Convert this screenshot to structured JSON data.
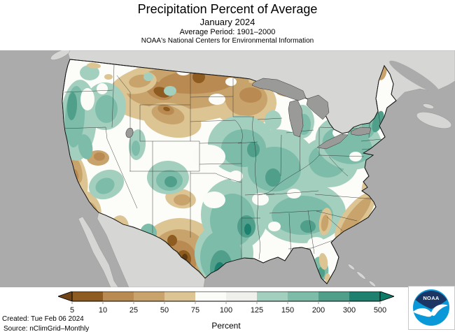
{
  "header": {
    "title": "Precipitation Percent of Average",
    "subtitle": "January 2024",
    "period": "Average Period: 1901–2000",
    "org": "NOAA's National Centers for Environmental Information"
  },
  "colorbar": {
    "unit_label": "Percent",
    "tick_labels": [
      "5",
      "10",
      "25",
      "50",
      "75",
      "100",
      "125",
      "150",
      "200",
      "300",
      "500"
    ]
  },
  "footer": {
    "created": "Created: Tue Feb 06 2024",
    "source": "Source: nClimGrid–Monthly"
  },
  "logo": {
    "label": "NOAA"
  },
  "colors": {
    "ocean": "#ABABAB",
    "neighbor_land": "#D6D6D4",
    "neighbor_stroke": "#8f8f8d",
    "lakes": "#9A9A98",
    "us_base": "#FCFCF8",
    "cb0": "#8E5C20",
    "cb1": "#B98B52",
    "cb2": "#C8A36B",
    "cb3": "#DCC493",
    "cb4": "#FBFBF7",
    "cb5": "#EFEFEC",
    "cb6": "#A3CFBF",
    "cb7": "#7CBCA9",
    "cb8": "#4F9F8B",
    "cb9": "#1E8170",
    "cbx": "#5E3A10",
    "arrow_left": "#6F4516",
    "arrow_right": "#0F7A66",
    "logo_navy": "#1B3665",
    "logo_blue": "#0A99D8"
  }
}
